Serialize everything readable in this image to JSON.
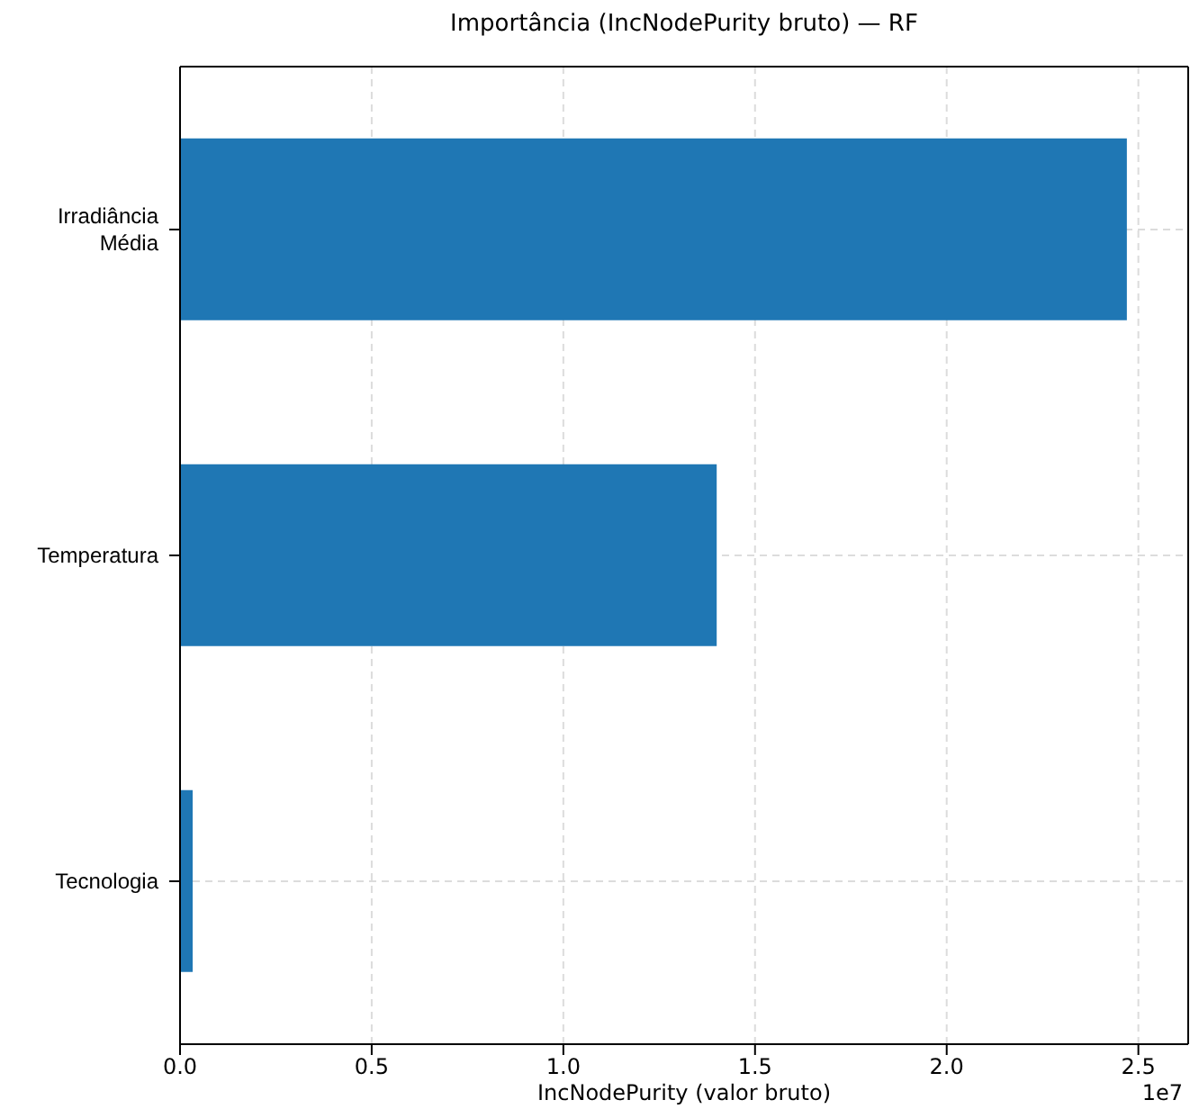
{
  "chart_data": {
    "type": "bar",
    "orientation": "horizontal",
    "title": "Importância (IncNodePurity bruto) — RF",
    "xlabel": "IncNodePurity (valor bruto)",
    "annotations": [
      "1e7"
    ],
    "categories": [
      "Irradiância\nMédia",
      "Temperatura",
      "Tecnologia"
    ],
    "values": [
      2.47,
      1.4,
      0.033
    ],
    "color": "#1f77b4",
    "xlim": [
      0,
      2.63
    ],
    "xticks": [
      {
        "value": 0,
        "label": "0.0"
      },
      {
        "value": 0.5,
        "label": "0.5"
      },
      {
        "value": 1,
        "label": "1.0"
      },
      {
        "value": 1.5,
        "label": "1.5"
      },
      {
        "value": 2,
        "label": "2.0"
      },
      {
        "value": 2.5,
        "label": "2.5"
      }
    ],
    "grid": true
  }
}
